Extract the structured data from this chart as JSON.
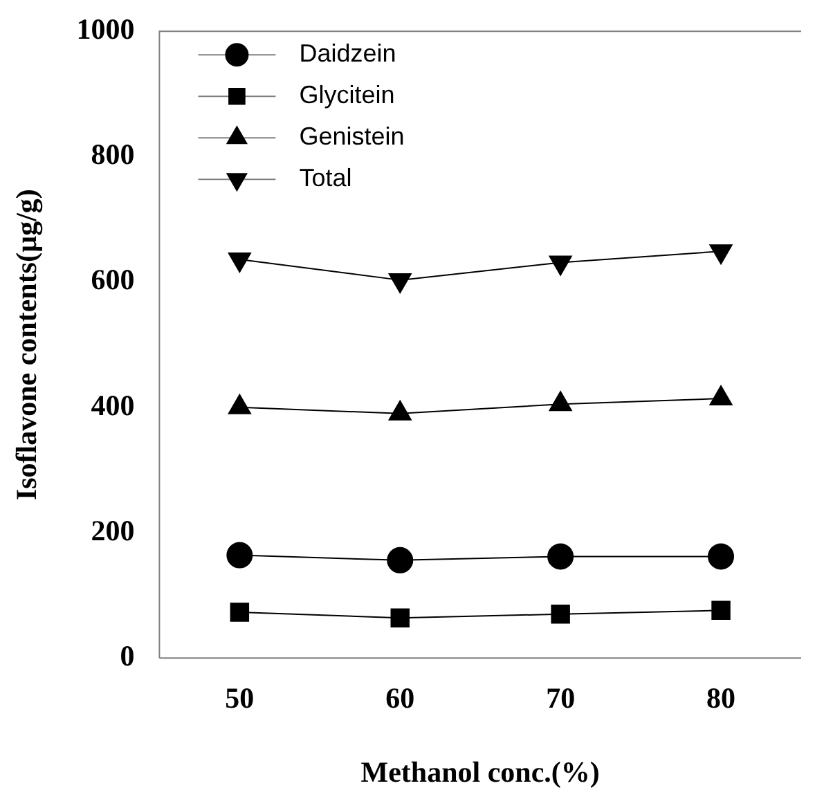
{
  "chart_data": {
    "type": "line",
    "xlabel": "Methanol conc.(%)",
    "ylabel": "Isoflavone contents(µg/g)",
    "x": [
      50,
      60,
      70,
      80
    ],
    "series": [
      {
        "name": "Daidzein",
        "color": "#000000",
        "marker": "circle",
        "values": [
          164,
          156,
          162,
          162
        ]
      },
      {
        "name": "Glycitein",
        "color": "#000000",
        "marker": "square",
        "values": [
          73,
          64,
          70,
          76
        ]
      },
      {
        "name": "Genistein",
        "color": "#000000",
        "marker": "triangle",
        "values": [
          400,
          390,
          405,
          414
        ]
      },
      {
        "name": "Total",
        "color": "#000000",
        "marker": "triangle-down",
        "values": [
          636,
          603,
          631,
          649
        ]
      }
    ],
    "xlim": [
      45,
      85
    ],
    "xticks": [
      50,
      60,
      70,
      80
    ],
    "ylim": [
      0,
      1000
    ],
    "yticks": [
      0,
      200,
      400,
      600,
      800,
      1000
    ],
    "grid": false,
    "legend": "top left",
    "line_style": "solid"
  }
}
